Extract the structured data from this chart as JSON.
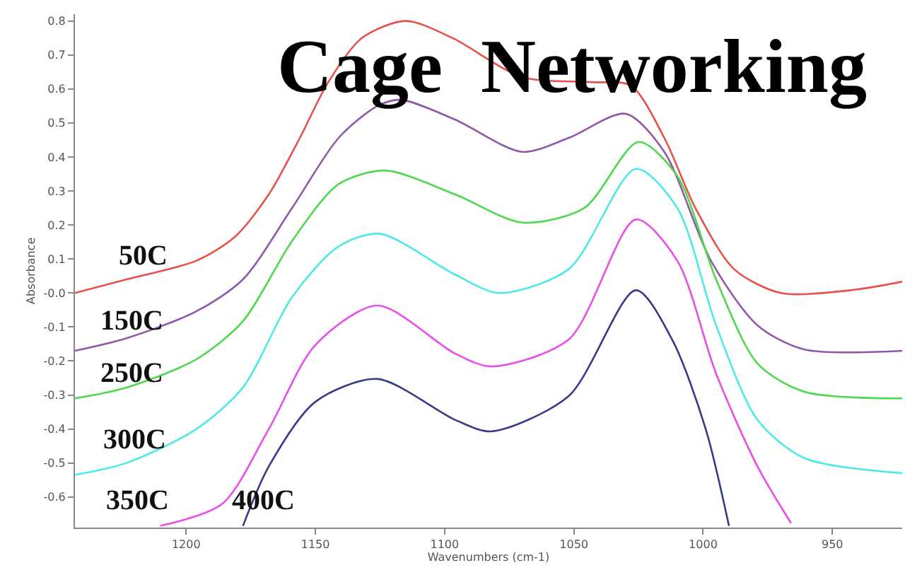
{
  "chart_data": {
    "type": "line",
    "title": "Cage  Networking",
    "xlabel": "Wavenumbers (cm-1)",
    "ylabel": "Absorbance",
    "xlim": [
      1243,
      923
    ],
    "ylim": [
      -0.69,
      0.82
    ],
    "xticks": [
      1200,
      1150,
      1100,
      1050,
      1000,
      950
    ],
    "yticks": [
      -0.6,
      -0.5,
      -0.4,
      -0.3,
      -0.2,
      -0.1,
      {
        "value": 0,
        "label": "-0.0"
      },
      0.1,
      0.2,
      0.3,
      0.4,
      0.5,
      0.6,
      0.7,
      0.8
    ],
    "legend": false,
    "marker": "none",
    "line_style": "solid",
    "series": [
      {
        "name": "50C",
        "color": "#e8504a",
        "x": [
          1243,
          1223,
          1196,
          1181,
          1168,
          1156,
          1145,
          1132,
          1115,
          1097,
          1070,
          1043,
          1028,
          1015,
          1003,
          988,
          970,
          943,
          923
        ],
        "values": [
          0.0,
          0.04,
          0.095,
          0.166,
          0.29,
          0.456,
          0.62,
          0.75,
          0.8,
          0.75,
          0.635,
          0.62,
          0.61,
          0.456,
          0.25,
          0.07,
          0.0,
          0.008,
          0.033
        ]
      },
      {
        "name": "150C",
        "color": "#8e5aa8",
        "x": [
          1243,
          1223,
          1196,
          1178,
          1159,
          1141,
          1126,
          1117,
          1096,
          1070,
          1052,
          1030,
          1015,
          997,
          979,
          961,
          923
        ],
        "values": [
          -0.17,
          -0.133,
          -0.054,
          0.04,
          0.25,
          0.456,
          0.55,
          0.568,
          0.51,
          0.415,
          0.456,
          0.527,
          0.415,
          0.095,
          -0.095,
          -0.166,
          -0.17
        ]
      },
      {
        "name": "250C",
        "color": "#4fd84f",
        "x": [
          1243,
          1223,
          1196,
          1178,
          1159,
          1141,
          1123,
          1096,
          1070,
          1046,
          1025,
          1010,
          995,
          979,
          961,
          923
        ],
        "values": [
          -0.31,
          -0.278,
          -0.195,
          -0.083,
          0.153,
          0.32,
          0.36,
          0.29,
          0.207,
          0.25,
          0.444,
          0.344,
          0.04,
          -0.207,
          -0.29,
          -0.31
        ]
      },
      {
        "name": "300C",
        "color": "#4fe8e8",
        "x": [
          1243,
          1223,
          1196,
          1178,
          1159,
          1141,
          1125,
          1096,
          1079,
          1052,
          1026,
          1010,
          995,
          979,
          961,
          923
        ],
        "values": [
          -0.535,
          -0.5,
          -0.4,
          -0.278,
          -0.012,
          0.137,
          0.174,
          0.054,
          0.0,
          0.07,
          0.365,
          0.25,
          -0.095,
          -0.373,
          -0.485,
          -0.53
        ]
      },
      {
        "name": "350C",
        "color": "#e84fe8",
        "x": [
          1210,
          1186,
          1168,
          1150,
          1126,
          1096,
          1082,
          1052,
          1026,
          1010,
          995,
          979,
          966
        ],
        "values": [
          -0.685,
          -0.62,
          -0.4,
          -0.153,
          -0.037,
          -0.178,
          -0.216,
          -0.137,
          0.216,
          0.095,
          -0.237,
          -0.51,
          -0.677
        ]
      },
      {
        "name": "400C",
        "color": "#3a3a8a",
        "x": [
          1178,
          1168,
          1150,
          1126,
          1096,
          1082,
          1052,
          1026,
          1012,
          999,
          990
        ],
        "values": [
          -0.685,
          -0.51,
          -0.32,
          -0.253,
          -0.373,
          -0.407,
          -0.303,
          0.008,
          -0.137,
          -0.4,
          -0.685
        ]
      }
    ]
  }
}
